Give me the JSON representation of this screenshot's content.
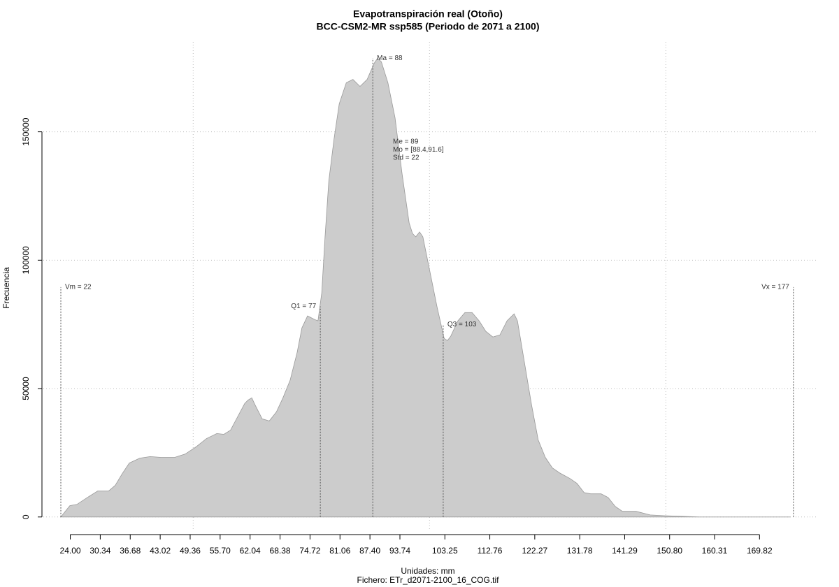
{
  "chart_data": {
    "type": "area",
    "title": "Evapotranspiración real (Otoño)",
    "subtitle": "BCC-CSM2-MR ssp585 (Periodo de 2071 a 2100)",
    "xlabel": "Unidades: mm",
    "caption": "Fichero: ETr_d2071-2100_16_COG.tif",
    "ylabel": "Frecuencia",
    "color": "#cccccc",
    "x": [
      22.0,
      23.9,
      25.4,
      27.6,
      29.8,
      32.1,
      33.5,
      35.0,
      36.5,
      38.7,
      40.9,
      43.2,
      46.1,
      48.3,
      50.6,
      52.8,
      55.0,
      56.5,
      57.9,
      59.4,
      60.9,
      61.6,
      62.4,
      63.1,
      64.6,
      66.1,
      67.6,
      69.0,
      70.5,
      72.0,
      73.0,
      74.2,
      75.7,
      76.4,
      77.2,
      77.9,
      78.7,
      79.8,
      80.9,
      82.4,
      83.8,
      85.3,
      86.8,
      88.3,
      89.0,
      89.8,
      91.2,
      92.7,
      94.2,
      95.7,
      96.4,
      97.1,
      97.9,
      98.6,
      100.1,
      101.6,
      103.1,
      103.8,
      104.5,
      106.0,
      107.5,
      109.0,
      110.5,
      111.9,
      113.4,
      114.9,
      116.4,
      117.9,
      118.6,
      120.1,
      121.6,
      123.0,
      124.5,
      126.0,
      127.5,
      129.7,
      131.2,
      132.7,
      134.1,
      136.3,
      137.8,
      139.3,
      140.8,
      143.7,
      146.7,
      149.7,
      152.6,
      157.1,
      176.3
    ],
    "values": [
      0,
      4400,
      4900,
      7600,
      10100,
      10100,
      12300,
      16900,
      21000,
      22900,
      23500,
      23200,
      23200,
      24500,
      27300,
      30500,
      32500,
      32200,
      33800,
      39000,
      44200,
      45500,
      46400,
      43600,
      38200,
      37400,
      40900,
      46400,
      53200,
      64100,
      73600,
      78300,
      76900,
      76400,
      87300,
      109100,
      130900,
      147300,
      160900,
      169100,
      170400,
      167700,
      170400,
      176700,
      178600,
      177300,
      169100,
      155500,
      133600,
      114500,
      110400,
      109100,
      111000,
      109100,
      95400,
      81800,
      69500,
      68700,
      70400,
      76400,
      79600,
      79600,
      76400,
      72300,
      70100,
      70900,
      76400,
      79100,
      76400,
      60000,
      43600,
      30000,
      23200,
      19100,
      17200,
      15000,
      13100,
      9500,
      9000,
      9000,
      7600,
      4100,
      2200,
      2200,
      800,
      500,
      300,
      0,
      0
    ],
    "xlim": [
      18.3,
      182.2
    ],
    "ylim": [
      -5500,
      185000
    ],
    "xticks": [
      {
        "value": 24,
        "label": "24.00"
      },
      {
        "value": 30.34,
        "label": "30.34"
      },
      {
        "value": 36.68,
        "label": "36.68"
      },
      {
        "value": 43.02,
        "label": "43.02"
      },
      {
        "value": 49.36,
        "label": "49.36"
      },
      {
        "value": 55.7,
        "label": "55.70"
      },
      {
        "value": 62.04,
        "label": "62.04"
      },
      {
        "value": 68.38,
        "label": "68.38"
      },
      {
        "value": 74.72,
        "label": "74.72"
      },
      {
        "value": 81.06,
        "label": "81.06"
      },
      {
        "value": 87.4,
        "label": "87.40"
      },
      {
        "value": 93.74,
        "label": "93.74"
      },
      {
        "value": 103.25,
        "label": "103.25"
      },
      {
        "value": 112.76,
        "label": "112.76"
      },
      {
        "value": 122.27,
        "label": "122.27"
      },
      {
        "value": 131.78,
        "label": "131.78"
      },
      {
        "value": 141.29,
        "label": "141.29"
      },
      {
        "value": 150.8,
        "label": "150.80"
      },
      {
        "value": 160.31,
        "label": "160.31"
      },
      {
        "value": 169.82,
        "label": "169.82"
      }
    ],
    "yticks": [
      0,
      50000,
      100000,
      150000
    ],
    "xgrid": [
      50,
      100,
      150
    ],
    "grid": true,
    "annotations": [
      {
        "label": "Vm = 22",
        "x": 22,
        "y": 89500
      },
      {
        "label": "Q1 = 77",
        "x": 76.9,
        "y": 82000
      },
      {
        "label": "Ma = 88",
        "x": 88.0,
        "y": 178600
      },
      {
        "label": "Q3 = 103",
        "x": 102.9,
        "y": 75000
      },
      {
        "label": "Vx = 177",
        "x": 177,
        "y": 89500
      }
    ],
    "stats": [
      "Me = 89",
      "Mo = [88.4,91.6]",
      "Std = 22"
    ]
  }
}
